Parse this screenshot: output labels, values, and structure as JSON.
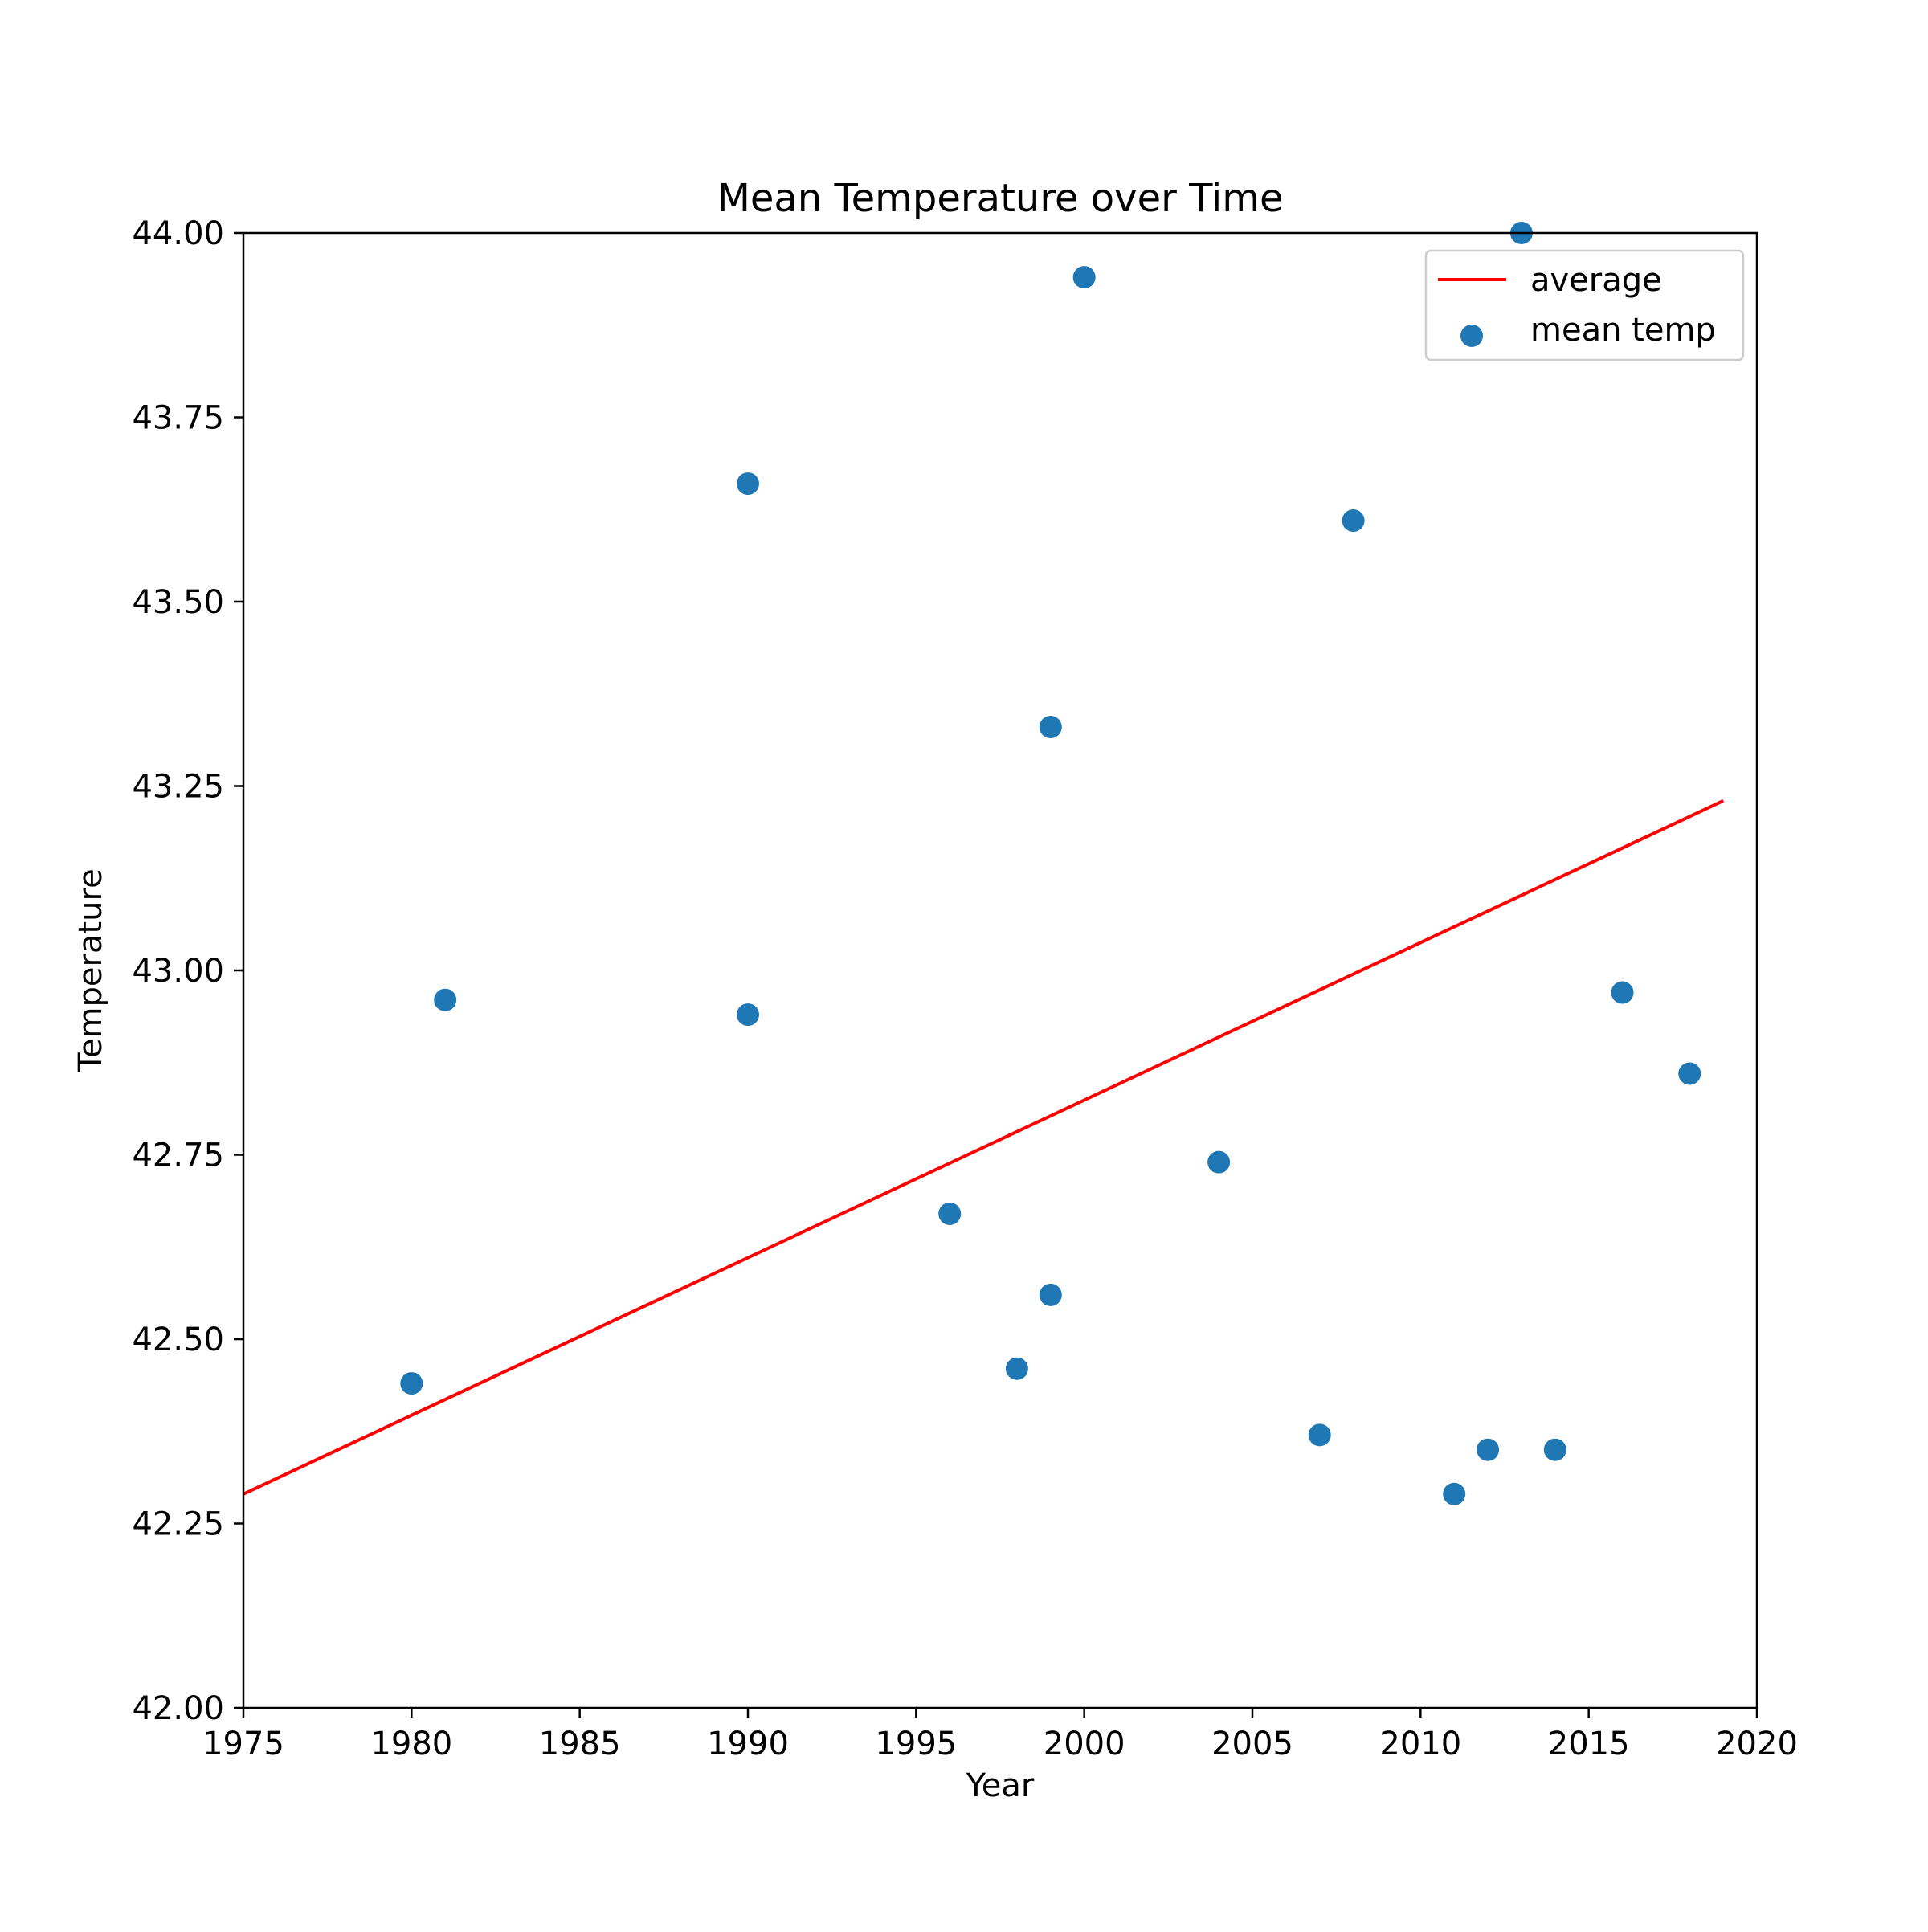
{
  "chart_data": {
    "type": "scatter",
    "title": "Mean Temperature over Time",
    "xlabel": "Year",
    "ylabel": "Temperature",
    "xlim": [
      1975,
      2020
    ],
    "ylim": [
      42.0,
      44.0
    ],
    "xticks": [
      "1975",
      "1980",
      "1985",
      "1990",
      "1995",
      "2000",
      "2005",
      "2010",
      "2015",
      "2020"
    ],
    "yticks": [
      "42.00",
      "42.25",
      "42.50",
      "42.75",
      "43.00",
      "43.25",
      "43.50",
      "43.75",
      "44.00"
    ],
    "grid": false,
    "legend_position": "top-right",
    "series": [
      {
        "name": "mean temp",
        "kind": "scatter",
        "color": "#1f77b4",
        "points": [
          {
            "x": 1980,
            "y": 42.44
          },
          {
            "x": 1981,
            "y": 42.96
          },
          {
            "x": 1990,
            "y": 43.66
          },
          {
            "x": 1990,
            "y": 42.94
          },
          {
            "x": 1996,
            "y": 42.67
          },
          {
            "x": 1998,
            "y": 42.46
          },
          {
            "x": 1999,
            "y": 43.33
          },
          {
            "x": 1999,
            "y": 42.56
          },
          {
            "x": 2000,
            "y": 43.94
          },
          {
            "x": 2004,
            "y": 42.74
          },
          {
            "x": 2007,
            "y": 42.37
          },
          {
            "x": 2008,
            "y": 43.61
          },
          {
            "x": 2011,
            "y": 42.29
          },
          {
            "x": 2012,
            "y": 42.35
          },
          {
            "x": 2013,
            "y": 44.0
          },
          {
            "x": 2014,
            "y": 42.35
          },
          {
            "x": 2016,
            "y": 42.97
          },
          {
            "x": 2018,
            "y": 42.86
          }
        ]
      },
      {
        "name": "average",
        "kind": "line",
        "color": "#ff0000",
        "points": [
          {
            "x": 1975,
            "y": 42.29
          },
          {
            "x": 2019,
            "y": 43.23
          }
        ]
      }
    ]
  }
}
